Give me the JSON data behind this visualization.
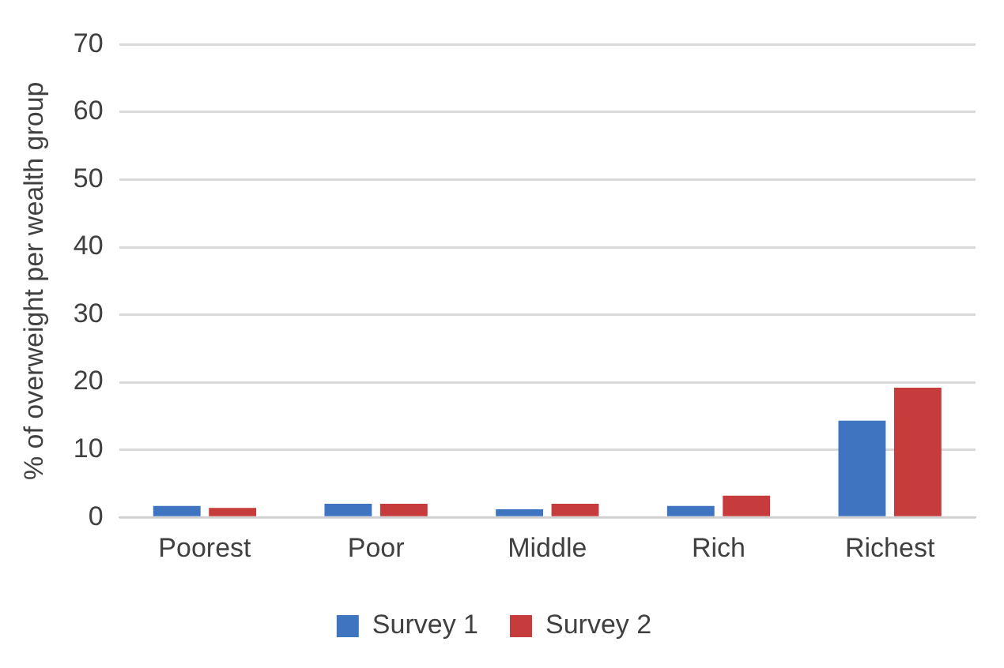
{
  "chart_data": {
    "type": "bar",
    "ylabel": "% of overweight per wealth group",
    "categories": [
      "Poorest",
      "Poor",
      "Middle",
      "Rich",
      "Richest"
    ],
    "series": [
      {
        "name": "Survey 1",
        "color": "#3f75c0",
        "values": [
          1.7,
          2.0,
          1.2,
          1.7,
          14.3
        ]
      },
      {
        "name": "Survey 2",
        "color": "#c63b3b",
        "values": [
          1.4,
          2.0,
          2.0,
          3.2,
          19.2
        ]
      }
    ],
    "ylim": [
      0,
      70
    ],
    "yticks": [
      0,
      10,
      20,
      30,
      40,
      50,
      60,
      70
    ],
    "grid": "y",
    "legend": "bottom"
  }
}
